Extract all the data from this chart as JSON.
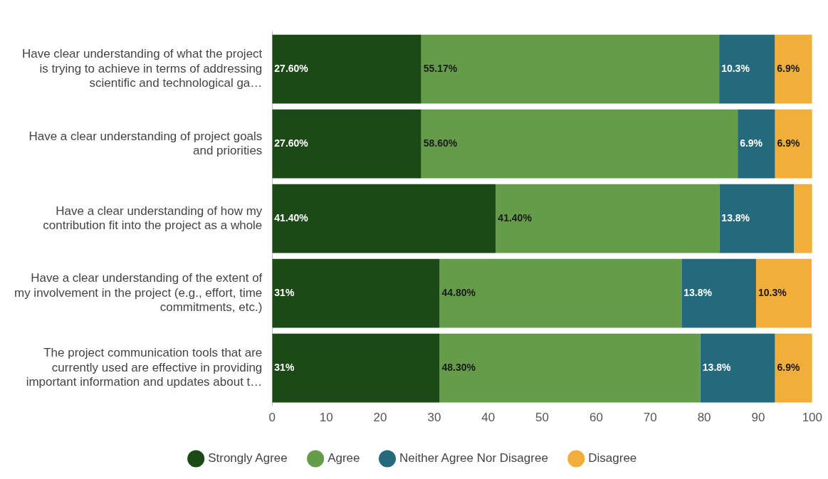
{
  "chart_data": {
    "type": "bar",
    "orientation": "horizontal",
    "stacked": true,
    "categories": [
      "Have clear understanding of what the project is trying to achieve in terms of addressing scientific and technological ga…",
      "Have a clear understanding of project goals and priorities",
      "Have a clear understanding of how my contribution fit into the project as a whole",
      "Have a clear understanding of the extent of my involvement in the project (e.g., effort, time commitments, etc.)",
      "The project communication tools that are currently used are effective in providing important information and updates about t…"
    ],
    "series": [
      {
        "name": "Strongly Agree",
        "color": "#1c4a17",
        "values": [
          27.6,
          27.6,
          41.4,
          31,
          31
        ],
        "value_labels": [
          "27.60%",
          "27.60%",
          "41.40%",
          "31%",
          "31%"
        ]
      },
      {
        "name": "Agree",
        "color": "#659c4a",
        "values": [
          55.17,
          58.6,
          41.4,
          44.8,
          48.3
        ],
        "value_labels": [
          "55.17%",
          "58.60%",
          "41.40%",
          "44.80%",
          "48.30%"
        ]
      },
      {
        "name": "Neither Agree Nor Disagree",
        "color": "#246a7c",
        "values": [
          10.3,
          6.9,
          13.8,
          13.8,
          13.8
        ],
        "value_labels": [
          "10.3%",
          "6.9%",
          "13.8%",
          "13.8%",
          "13.8%"
        ]
      },
      {
        "name": "Disagree",
        "color": "#f2ae3a",
        "values": [
          6.9,
          6.9,
          3.4,
          10.3,
          6.9
        ],
        "value_labels": [
          "6.9%",
          "6.9%",
          null,
          "10.3%",
          "6.9%"
        ]
      }
    ],
    "xlim": [
      0,
      100
    ],
    "xticks": [
      0,
      10,
      20,
      30,
      40,
      50,
      60,
      70,
      80,
      90,
      100
    ],
    "grid": false,
    "legend": "bottom"
  }
}
